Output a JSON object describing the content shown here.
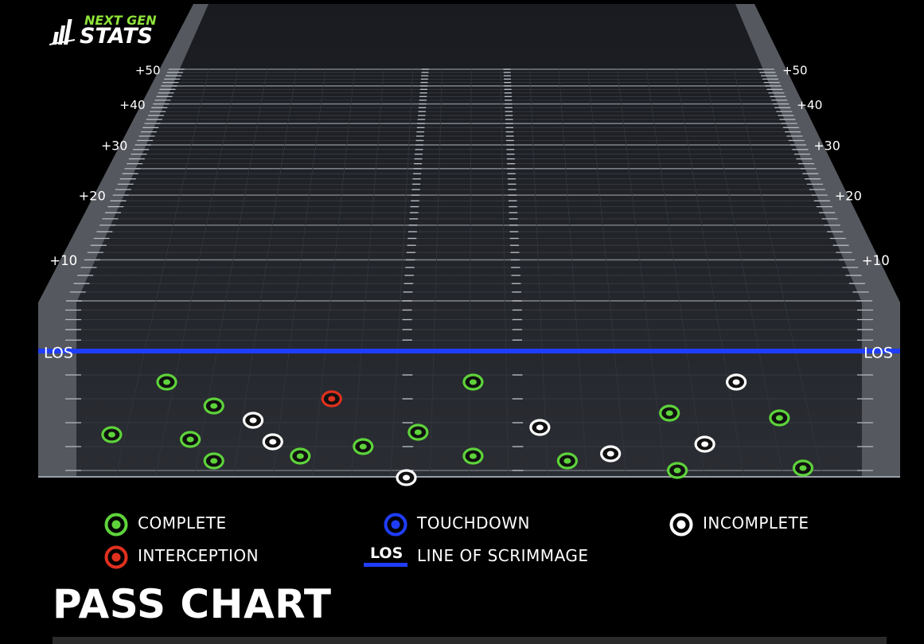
{
  "brand": {
    "line1": "NEXT GEN",
    "line2": "STATS"
  },
  "title": "PASS CHART",
  "colors": {
    "complete": "#5ed33b",
    "interception": "#e0301e",
    "touchdown": "#1f3dff",
    "incomplete": "#ffffff",
    "los_line": "#1f3dff"
  },
  "legend": {
    "complete": "COMPLETE",
    "touchdown": "TOUCHDOWN",
    "incomplete": "INCOMPLETE",
    "interception": "INTERCEPTION",
    "los_badge": "LOS",
    "los": "LINE OF SCRIMMAGE"
  },
  "chart_data": {
    "type": "scatter",
    "title": "PASS CHART",
    "xlabel": "",
    "ylabel": "",
    "los_label": "LOS",
    "y_tick_labels": [
      "+10",
      "+20",
      "+30",
      "+40",
      "+50"
    ],
    "y_ticks": [
      10,
      20,
      30,
      40,
      50
    ],
    "ylim": [
      -6,
      50
    ],
    "xlim": [
      0,
      100
    ],
    "series": [
      {
        "name": "COMPLETE",
        "points": [
          {
            "x": 4.5,
            "y": -3.5
          },
          {
            "x": 11.5,
            "y": -1.3
          },
          {
            "x": 14.5,
            "y": -3.7
          },
          {
            "x": 17.5,
            "y": -2.3
          },
          {
            "x": 17.5,
            "y": -4.6
          },
          {
            "x": 28.5,
            "y": -4.4
          },
          {
            "x": 36.5,
            "y": -4.0
          },
          {
            "x": 43.5,
            "y": -3.4
          },
          {
            "x": 50.5,
            "y": -1.3
          },
          {
            "x": 50.5,
            "y": -4.4
          },
          {
            "x": 62.5,
            "y": -4.6
          },
          {
            "x": 75.5,
            "y": -2.6
          },
          {
            "x": 76.5,
            "y": -5.0
          },
          {
            "x": 89.5,
            "y": -2.8
          },
          {
            "x": 92.5,
            "y": -4.9
          }
        ]
      },
      {
        "name": "INCOMPLETE",
        "points": [
          {
            "x": 22.5,
            "y": -2.9
          },
          {
            "x": 25,
            "y": -3.8
          },
          {
            "x": 42,
            "y": -5.3
          },
          {
            "x": 59,
            "y": -3.2
          },
          {
            "x": 68,
            "y": -4.3
          },
          {
            "x": 80,
            "y": -3.9
          },
          {
            "x": 84,
            "y": -1.3
          }
        ]
      },
      {
        "name": "INTERCEPTION",
        "points": [
          {
            "x": 32.5,
            "y": -2.0
          }
        ]
      },
      {
        "name": "TOUCHDOWN",
        "points": []
      }
    ]
  }
}
